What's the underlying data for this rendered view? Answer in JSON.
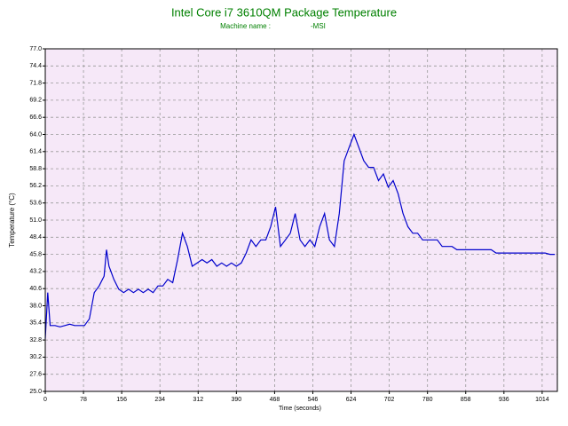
{
  "chart_data": {
    "type": "line",
    "title": "Intel Core i7 3610QM Package Temperature",
    "subtitle": "Machine name :",
    "subtitle_value": "-MSI",
    "x_label": "Time (seconds)",
    "y_label": "Temperature (°C)",
    "xlim": [
      0,
      1045
    ],
    "ylim": [
      25,
      77
    ],
    "xticks": [
      0,
      78,
      156,
      234,
      312,
      390,
      468,
      546,
      624,
      702,
      780,
      858,
      936,
      1014
    ],
    "yticks": [
      {
        "value": 25,
        "label": "25.0"
      },
      27.6,
      30.2,
      32.8,
      35.4,
      {
        "value": 38,
        "label": "38.0"
      },
      40.6,
      43.2,
      45.8,
      48.4,
      {
        "value": 51,
        "label": "51.0"
      },
      53.6,
      56.2,
      58.8,
      61.4,
      {
        "value": 64,
        "label": "64.0"
      },
      66.6,
      69.2,
      71.8,
      74.4,
      {
        "value": 77,
        "label": "77.0"
      }
    ],
    "grid": true,
    "background": "#f6e8f8",
    "series": [
      {
        "name": "Package Temperature",
        "color": "#0000cc",
        "x": [
          0,
          5,
          10,
          20,
          30,
          40,
          50,
          60,
          70,
          80,
          90,
          100,
          110,
          120,
          125,
          130,
          140,
          150,
          160,
          170,
          180,
          190,
          200,
          210,
          220,
          230,
          240,
          250,
          260,
          270,
          280,
          290,
          300,
          310,
          320,
          330,
          340,
          350,
          360,
          370,
          380,
          390,
          400,
          410,
          420,
          430,
          440,
          450,
          460,
          470,
          480,
          490,
          500,
          510,
          520,
          530,
          540,
          550,
          560,
          570,
          580,
          590,
          600,
          610,
          620,
          630,
          640,
          650,
          660,
          670,
          680,
          690,
          700,
          710,
          720,
          730,
          740,
          750,
          760,
          770,
          780,
          790,
          800,
          810,
          820,
          830,
          840,
          850,
          860,
          870,
          880,
          890,
          900,
          910,
          920,
          930,
          940,
          950,
          960,
          970,
          980,
          990,
          1000,
          1010,
          1020,
          1030,
          1040
        ],
        "values": [
          33,
          40,
          35,
          35,
          34.8,
          35,
          35.2,
          35,
          35,
          35,
          36,
          40,
          41,
          42.5,
          46.5,
          44,
          42,
          40.5,
          40,
          40.5,
          40,
          40.5,
          40,
          40.5,
          40,
          41,
          41,
          42,
          41.5,
          45,
          49,
          47,
          44,
          44.5,
          45,
          44.5,
          45,
          44,
          44.5,
          44,
          44.5,
          44,
          44.5,
          46,
          48,
          47,
          48,
          48,
          50,
          53,
          47,
          48,
          49,
          52,
          48,
          47,
          48,
          47,
          50,
          52,
          48,
          47,
          52,
          60,
          62,
          64,
          62,
          60,
          59,
          59,
          57,
          58,
          56,
          57,
          55,
          52,
          50,
          49,
          49,
          48,
          48,
          48,
          48,
          47,
          47,
          47,
          46.5,
          46.5,
          46.5,
          46.5,
          46.5,
          46.5,
          46.5,
          46.5,
          46,
          46,
          46,
          46,
          46,
          46,
          46,
          46,
          46,
          46,
          46,
          45.8,
          45.8
        ]
      }
    ]
  }
}
